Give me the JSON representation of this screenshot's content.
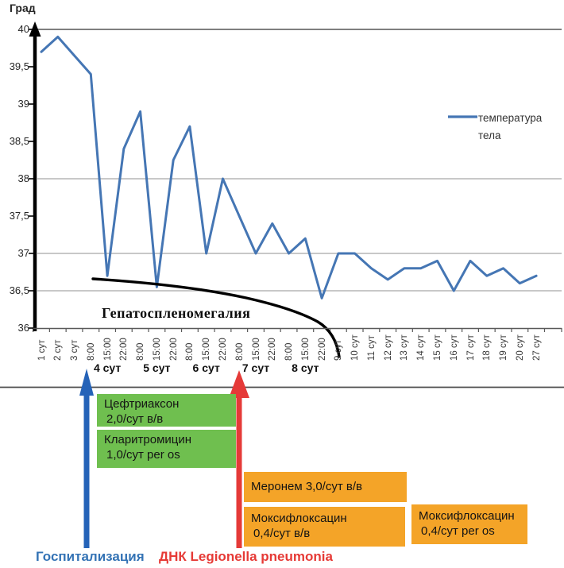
{
  "chart": {
    "y_axis_title": "Град",
    "y_ticks": [
      "40",
      "39,5",
      "39",
      "38,5",
      "38",
      "37,5",
      "37",
      "36,5",
      "36"
    ],
    "legend_label": "температура тела",
    "annotation": "Гепатоспленомегалия",
    "day_groups": [
      "4 сут",
      "5 сут",
      "6 сут",
      "7 сут",
      "8 сут"
    ]
  },
  "chart_data": {
    "type": "line",
    "title": "",
    "xlabel": "",
    "ylabel": "Град",
    "ylim": [
      36,
      40
    ],
    "gridlines_at": [
      40,
      38,
      37,
      36.5
    ],
    "legend_position": "right",
    "x": [
      "1 сут",
      "2 сут",
      "3 сут",
      "8:00",
      "15:00",
      "22:00",
      "8:00",
      "15:00",
      "22:00",
      "8:00",
      "15:00",
      "22:00",
      "8:00",
      "15:00",
      "22:00",
      "8:00",
      "15:00",
      "22:00",
      "9 сут",
      "10 сут",
      "11 сут",
      "12 сут",
      "13 сут",
      "14 сут",
      "15 сут",
      "16 сут",
      "17 сут",
      "18 сут",
      "19 сут",
      "20 сут",
      "27 сут"
    ],
    "day_group_spans": [
      [
        "4 сут",
        "8:00–22:00"
      ],
      [
        "5 сут",
        "8:00–22:00"
      ],
      [
        "6 сут",
        "8:00–22:00"
      ],
      [
        "7 сут",
        "8:00–22:00"
      ],
      [
        "8 сут",
        "8:00–22:00"
      ]
    ],
    "series": [
      {
        "name": "температура тела",
        "values": [
          39.7,
          39.9,
          39.65,
          39.4,
          36.7,
          38.4,
          38.9,
          36.55,
          38.25,
          38.7,
          37.0,
          38.0,
          37.5,
          37.0,
          37.4,
          37.0,
          37.2,
          36.4,
          37.0,
          37.0,
          36.8,
          36.65,
          36.8,
          36.8,
          36.9,
          36.5,
          36.9,
          36.7,
          36.8,
          36.6,
          36.7
        ]
      }
    ],
    "annotations": [
      {
        "text": "Гепатоспленомегалия",
        "type": "curve",
        "from_x": "4 сут 8:00",
        "to_x": "9 сут",
        "from_value": 36.65,
        "to_value": 35.6
      }
    ]
  },
  "timeline": {
    "hospitalization_label": "Госпитализация",
    "dna_label": "ДНК Legionella pneumonia",
    "medications": [
      {
        "name": "Цефтриаксон",
        "dose": "2,0/сут в/в",
        "color_key": "green"
      },
      {
        "name": "Кларитромицин",
        "dose": "1,0/сут per os",
        "color_key": "green"
      },
      {
        "name": "Меронем",
        "dose": "3,0/сут в/в",
        "color_key": "orange"
      },
      {
        "name": "Моксифлоксацин",
        "dose": "0,4/сут в/в",
        "color_key": "orange"
      },
      {
        "name": "Моксифлоксацин",
        "dose": "0,4/сут per os",
        "color_key": "orange"
      }
    ]
  },
  "colors": {
    "line": "#4576b4",
    "grid_heavy": "#7f7f7f",
    "grid_light": "#a6a6a6",
    "axis": "#000000",
    "bottom_axis": "#595959",
    "green_box": "#6fbf4f",
    "orange_box": "#f4a428",
    "arrow_blue": "#2563b8",
    "arrow_red": "#e53a38",
    "label_blue": "#3473b5",
    "label_red": "#e63a36"
  }
}
